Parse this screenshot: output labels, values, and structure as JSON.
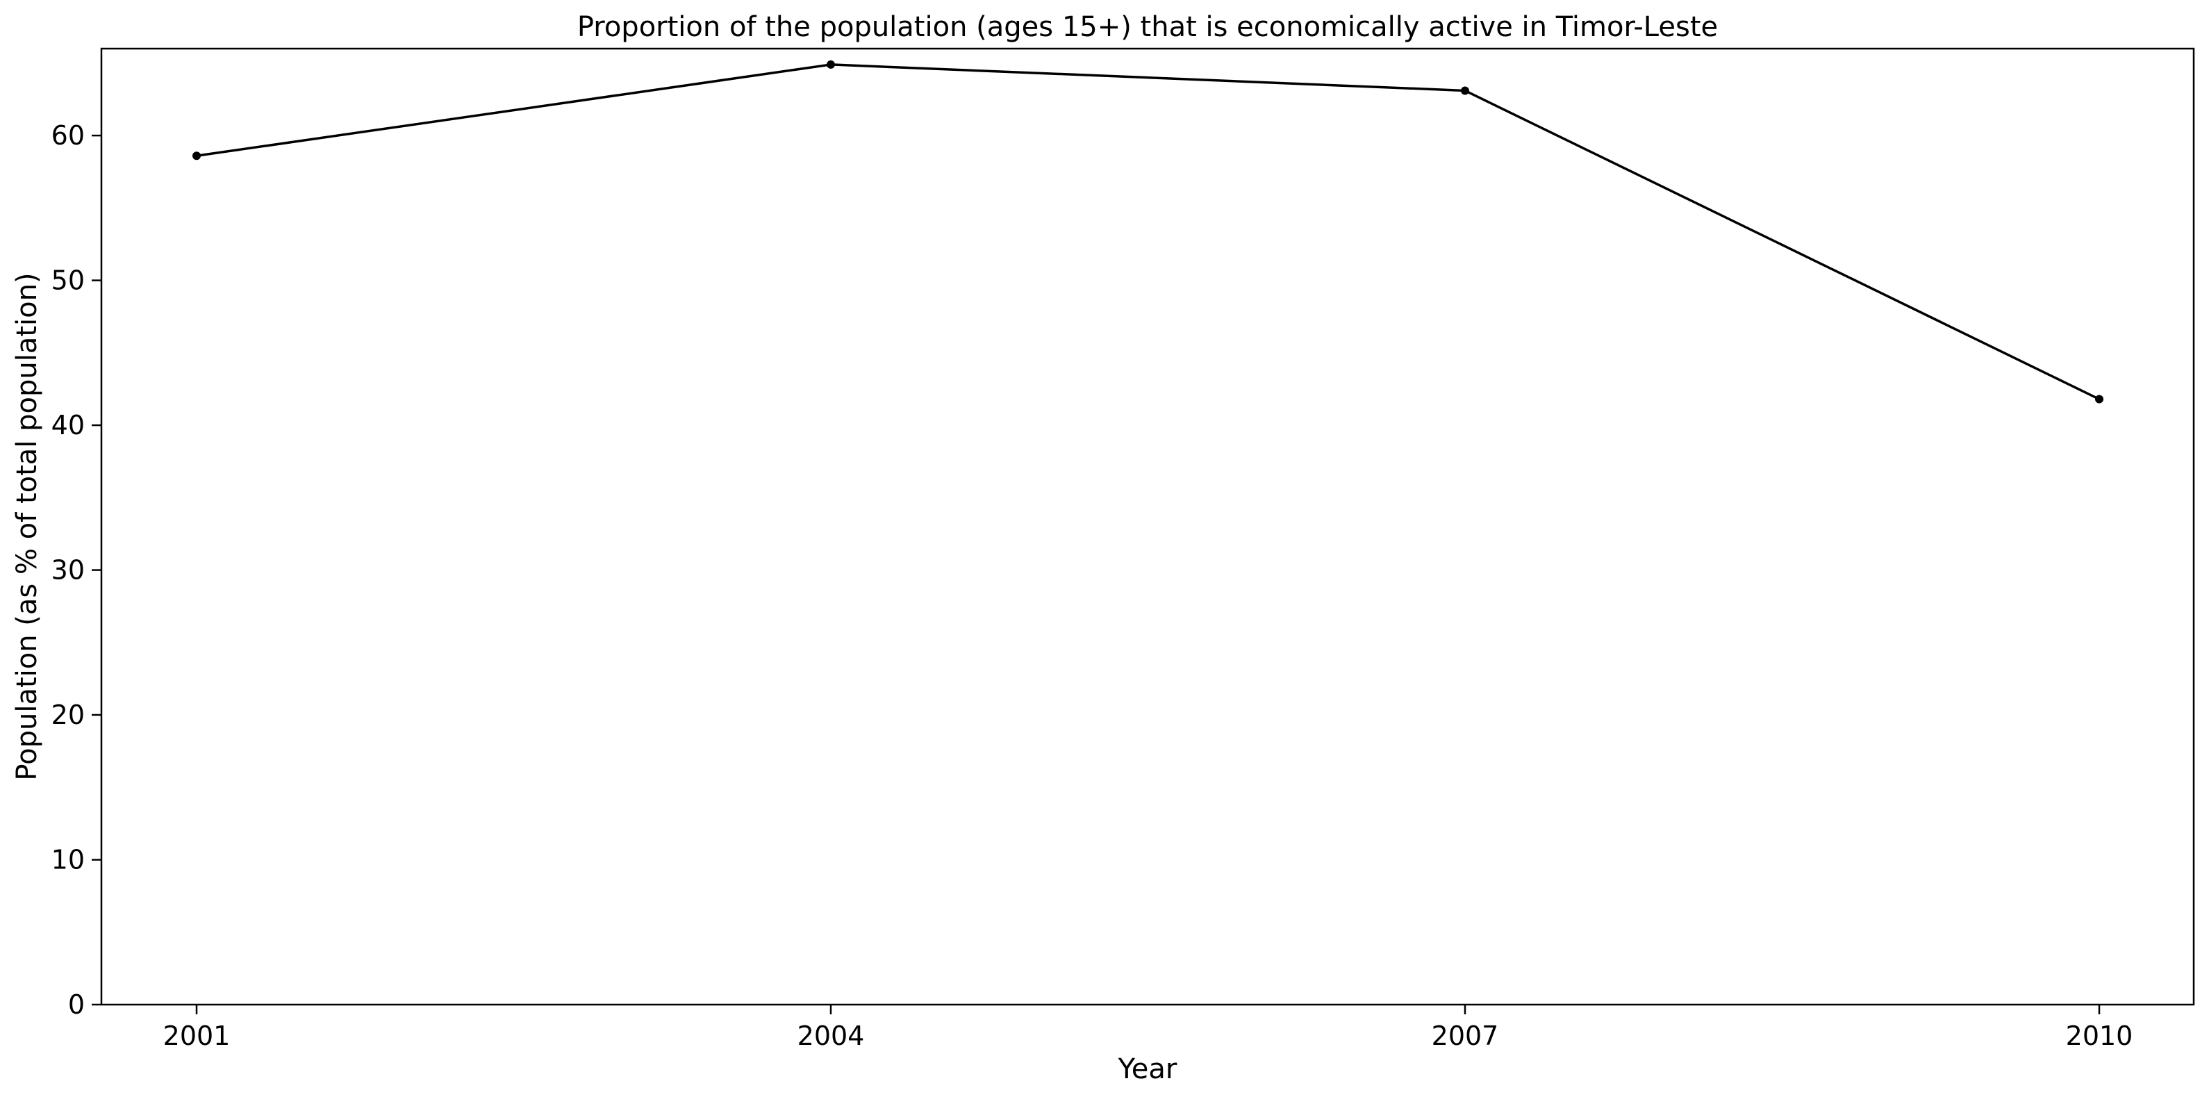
{
  "chart_data": {
    "type": "line",
    "title": "Proportion of the population (ages 15+) that is economically active in Timor-Leste",
    "xlabel": "Year",
    "ylabel": "Population (as % of total population)",
    "x": [
      "2001",
      "2004",
      "2007",
      "2010"
    ],
    "series": [
      {
        "values": [
          58.6,
          64.9,
          63.1,
          41.8
        ]
      }
    ],
    "ylim": [
      0,
      66
    ],
    "yticks": [
      0,
      10,
      20,
      30,
      40,
      50,
      60
    ],
    "grid": false,
    "line_color": "#000000"
  }
}
